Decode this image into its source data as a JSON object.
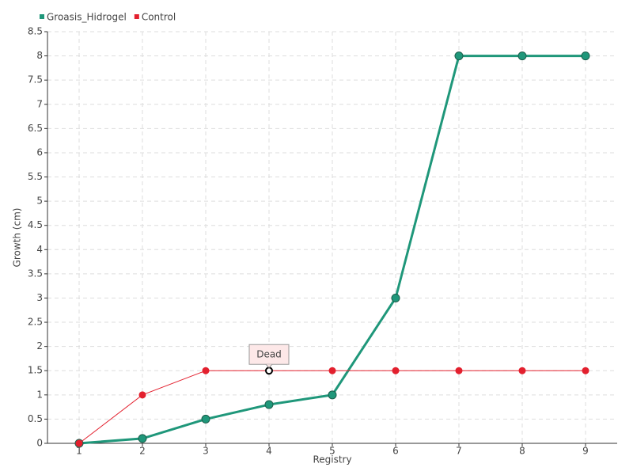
{
  "chart_data": {
    "type": "line",
    "x": [
      1,
      2,
      3,
      4,
      5,
      6,
      7,
      8,
      9
    ],
    "xlim": [
      0.5,
      9.5
    ],
    "xticks": [
      1,
      2,
      3,
      4,
      5,
      6,
      7,
      8,
      9
    ],
    "ylim": [
      0,
      8.5
    ],
    "yticks": [
      0,
      0.5,
      1,
      1.5,
      2,
      2.5,
      3,
      3.5,
      4,
      4.5,
      5,
      5.5,
      6,
      6.5,
      7,
      7.5,
      8,
      8.5
    ],
    "xlabel": "Registry",
    "ylabel": "Growth (cm)",
    "grid": true,
    "legend": "top-left",
    "series": [
      {
        "name": "Groasis_Hidrogel",
        "color": "#1f977a",
        "values": [
          0,
          0.1,
          0.5,
          0.8,
          1,
          3,
          8,
          8,
          8
        ]
      },
      {
        "name": "Control",
        "color": "#e3202e",
        "values": [
          0,
          1,
          1.5,
          1.5,
          1.5,
          1.5,
          1.5,
          1.5,
          1.5
        ]
      }
    ],
    "annotations": [
      {
        "text": "Dead",
        "x": 4,
        "y": 1.5
      }
    ]
  }
}
